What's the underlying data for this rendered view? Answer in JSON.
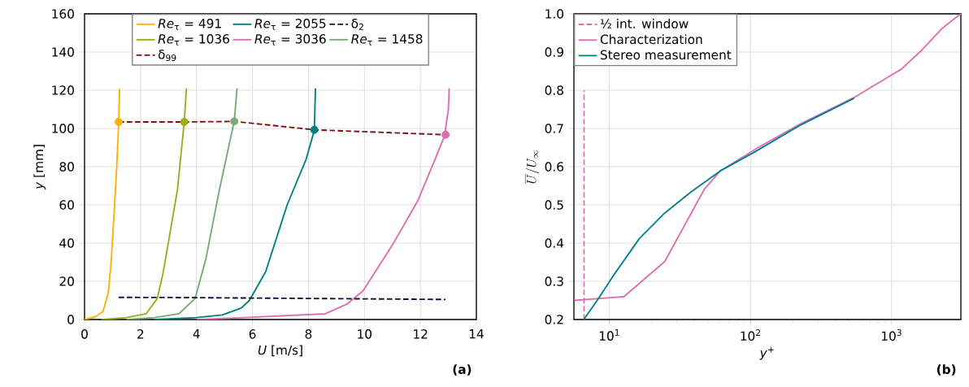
{
  "chart_data": [
    {
      "type": "line",
      "xlabel": "*U* [m/s]",
      "ylabel": "*y* [mm]",
      "xlim": [
        0,
        14
      ],
      "xticks": [
        0,
        2,
        4,
        6,
        8,
        10,
        12,
        14
      ],
      "ylim": [
        0,
        160
      ],
      "yticks": [
        0,
        20,
        40,
        60,
        80,
        100,
        120,
        140,
        160
      ],
      "grid": true,
      "legend": "top",
      "annotations": [
        "(a)"
      ],
      "series": [
        {
          "name": "*Re*$_{τ}$ = 491",
          "color": "#ffb000",
          "x": [
            0,
            0.4,
            0.66,
            0.85,
            0.95,
            1.05,
            1.15,
            1.22,
            1.25
          ],
          "values": [
            0,
            1.5,
            4.3,
            14,
            30,
            54,
            80,
            103,
            121
          ]
        },
        {
          "name": "*Re*$_{τ}$ = 1036",
          "color": "#9aae1c",
          "x": [
            0.6,
            1.5,
            2.2,
            2.6,
            2.8,
            2.98,
            3.32,
            3.56,
            3.64
          ],
          "values": [
            0,
            1,
            3,
            11,
            24,
            39,
            68,
            103,
            121
          ]
        },
        {
          "name": "*Re*$_{τ}$ = 1458",
          "color": "#77aa77",
          "x": [
            1.5,
            2.5,
            3.37,
            3.95,
            4.34,
            4.82,
            5.35,
            5.45
          ],
          "values": [
            0,
            1,
            3,
            11,
            32,
            68,
            104,
            121
          ]
        },
        {
          "name": "*Re*$_{τ}$ = 2055",
          "color": "#007f7f",
          "x": [
            2.5,
            4,
            4.92,
            5.6,
            5.89,
            6.47,
            7.24,
            7.92,
            8.21,
            8.25
          ],
          "values": [
            0,
            1,
            2.4,
            6,
            10,
            25,
            60,
            84,
            99,
            121
          ]
        },
        {
          "name": "*Re*$_{τ}$ = 3036",
          "color": "#dd6eb2",
          "x": [
            4,
            5.7,
            8.6,
            9.37,
            9.95,
            11.0,
            11.9,
            12.47,
            12.86,
            13.0,
            13.03
          ],
          "values": [
            0,
            1,
            3,
            8,
            15,
            39,
            62,
            82,
            96,
            110,
            121
          ]
        },
        {
          "name": "δ$_{99}$",
          "color": "#7f1010",
          "line_style": "dashed",
          "marker": "circle",
          "colors": [
            "#ffb000",
            "#9aae1c",
            "#77aa77",
            "#007f7f",
            "#dd6eb2"
          ],
          "x": [
            1.22,
            3.56,
            5.35,
            8.21,
            12.9
          ],
          "values": [
            103.4,
            103.4,
            103.7,
            99.3,
            96.7
          ]
        },
        {
          "name": "δ$_{2}$",
          "color": "#101040",
          "line_style": "dashed",
          "x": [
            1.22,
            3.56,
            5.35,
            8.21,
            12.9
          ],
          "values": [
            11.6,
            11.5,
            11.3,
            11.0,
            10.5
          ]
        }
      ]
    },
    {
      "type": "line",
      "xlabel": "*y*$^{+}$",
      "ylabel": "\\overline{U}/U_{\\infty}",
      "log": "x",
      "xlim": [
        5.6,
        3100
      ],
      "xticks": [
        {
          "value": 10,
          "label": "10$^{1}$"
        },
        {
          "value": 100,
          "label": "10$^{2}$"
        },
        {
          "value": 1000,
          "label": "10$^{3}$"
        }
      ],
      "ylim": [
        0.2,
        1.0
      ],
      "yticks": [
        0.2,
        0.3,
        0.4,
        0.5,
        0.6,
        0.7,
        0.8,
        0.9,
        {
          "value": 1.0,
          "label": "1.0"
        }
      ],
      "grid": true,
      "legend": "top left",
      "annotations": [
        "(b)"
      ],
      "series": [
        {
          "name": "½ int. window",
          "color": "#dd6eb2",
          "line_style": "dashed",
          "x": [
            6.6,
            6.6
          ],
          "values": [
            0.2,
            0.8
          ]
        },
        {
          "name": "Characterization",
          "color": "#dd6eb2",
          "x": [
            5.64,
            12.7,
            24.7,
            46.9,
            61.1,
            113,
            229,
            542,
            940,
            1172,
            1596,
            2270,
            3090
          ],
          "values": [
            0.25,
            0.26,
            0.352,
            0.54,
            0.589,
            0.65,
            0.713,
            0.781,
            0.834,
            0.855,
            0.901,
            0.961,
            1.0
          ]
        },
        {
          "name": "Stereo measurement",
          "color": "#007f8f",
          "x": [
            6.58,
            8.39,
            10.9,
            16.3,
            24.2,
            37.6,
            61.1,
            104,
            229,
            542
          ],
          "values": [
            0.2,
            0.256,
            0.32,
            0.412,
            0.476,
            0.533,
            0.589,
            0.636,
            0.71,
            0.779
          ]
        }
      ]
    }
  ]
}
